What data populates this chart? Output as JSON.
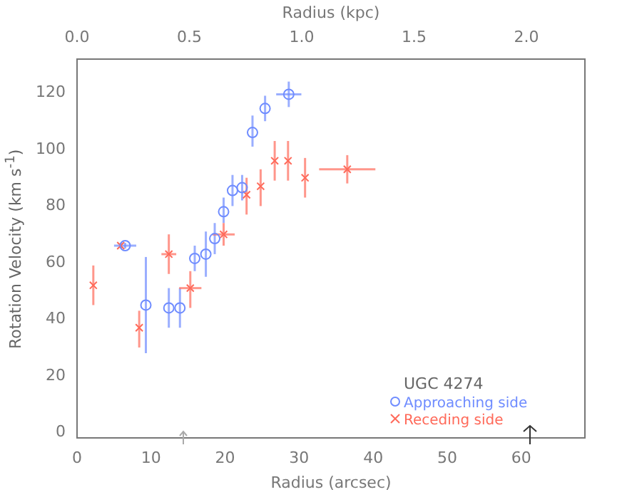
{
  "chart_data": {
    "type": "scatter",
    "xlabel": "Radius (arcsec)",
    "ylabel": "Rotation Velocity (km s$^{-1}$)",
    "x2label": "Radius (kpc)",
    "xlim": [
      0,
      68.6
    ],
    "xticks": [
      0,
      10,
      20,
      30,
      40,
      50,
      60
    ],
    "x2lim": [
      0,
      2.26
    ],
    "x2ticks": [
      {
        "value": 0,
        "label": "0.0"
      },
      {
        "value": 0.5,
        "label": "0.5"
      },
      {
        "value": 1,
        "label": "1.0"
      },
      {
        "value": 1.5,
        "label": "1.5"
      },
      {
        "value": 2,
        "label": "2.0"
      }
    ],
    "ylim": [
      -2,
      132
    ],
    "yticks": [
      0,
      20,
      40,
      60,
      80,
      100,
      120
    ],
    "grid": false,
    "legend": "bottom right",
    "legend_title": "UGC 4274",
    "series": [
      {
        "name": "Approaching side",
        "color": "#6f8cff",
        "marker": "circle",
        "x": [
          6.5,
          9.3,
          12.4,
          13.9,
          15.9,
          17.4,
          18.6,
          19.8,
          21,
          22.3,
          23.7,
          25.4,
          28.6
        ],
        "values": [
          66,
          45,
          44,
          44,
          61.5,
          63,
          68.5,
          78,
          85.5,
          86.5,
          106,
          114.5,
          119.5
        ],
        "errors": [
          [
            65,
            67
          ],
          [
            28,
            62
          ],
          [
            37,
            51
          ],
          [
            37,
            51
          ],
          [
            57,
            66
          ],
          [
            55,
            71
          ],
          [
            63,
            74
          ],
          [
            74,
            83
          ],
          [
            80,
            91
          ],
          [
            82,
            91
          ],
          [
            101,
            112
          ],
          [
            110,
            119
          ],
          [
            115,
            124
          ]
        ],
        "xerrors": [
          1.5,
          null,
          null,
          null,
          null,
          null,
          null,
          null,
          null,
          null,
          null,
          null,
          1.7
        ]
      },
      {
        "name": "Receding side",
        "color": "#ff6a5a",
        "marker": "cross",
        "x": [
          2.2,
          5.9,
          8.4,
          12.4,
          15.3,
          19.8,
          22.9,
          24.8,
          26.7,
          28.5,
          30.8,
          36.5
        ],
        "values": [
          52,
          66,
          37,
          63,
          51,
          70,
          84,
          87,
          96,
          96,
          90,
          93
        ],
        "errors": [
          [
            45,
            59
          ],
          [
            65,
            67
          ],
          [
            30,
            43
          ],
          [
            56,
            70
          ],
          [
            44,
            57
          ],
          [
            66,
            74
          ],
          [
            77,
            90
          ],
          [
            80,
            93
          ],
          [
            89,
            103
          ],
          [
            89,
            103
          ],
          [
            83,
            97
          ],
          [
            88,
            98
          ]
        ],
        "xerrors": [
          null,
          null,
          null,
          1,
          1.5,
          1.5,
          null,
          null,
          null,
          null,
          null,
          [
            32.7,
            40.3
          ]
        ]
      }
    ]
  }
}
